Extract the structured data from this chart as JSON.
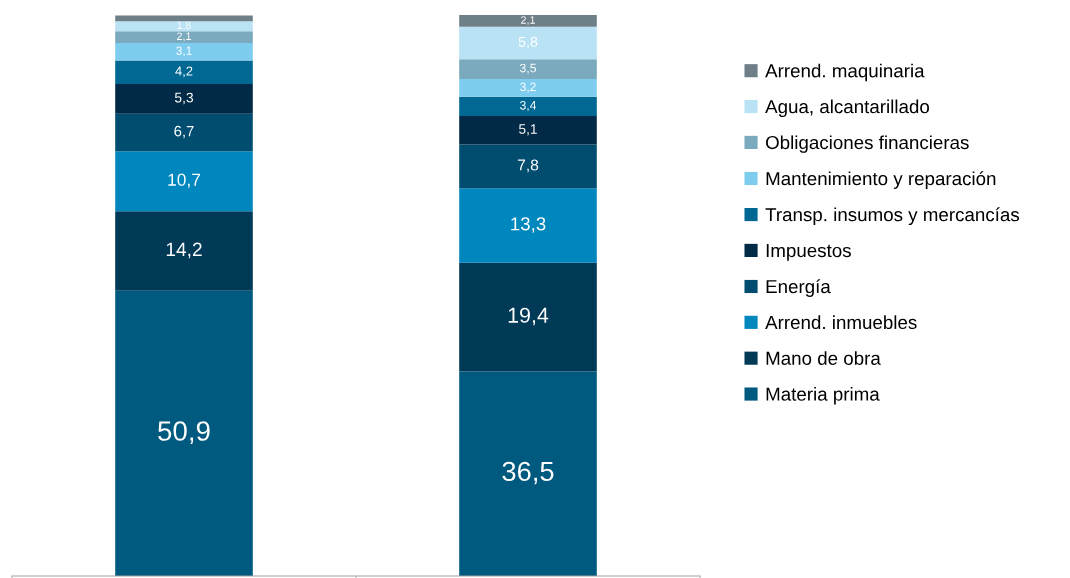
{
  "chart_data": {
    "type": "bar",
    "stacked": true,
    "legend": "right",
    "categories": [
      null,
      null
    ],
    "series": [
      {
        "name": "Materia prima",
        "color": "#00597f",
        "values": [
          50.9,
          36.5
        ],
        "value_labels": [
          "50,9",
          "36,5"
        ]
      },
      {
        "name": "Mano de obra",
        "color": "#003a57",
        "values": [
          14.2,
          19.4
        ],
        "value_labels": [
          "14,2",
          "19,4"
        ]
      },
      {
        "name": "Arrend. inmuebles",
        "color": "#0087bd",
        "values": [
          10.7,
          13.3
        ],
        "value_labels": [
          "10,7",
          "13,3"
        ]
      },
      {
        "name": "Energía",
        "color": "#004d70",
        "values": [
          6.7,
          7.8
        ],
        "value_labels": [
          "6,7",
          "7,8"
        ]
      },
      {
        "name": "Impuestos",
        "color": "#002a45",
        "values": [
          5.3,
          5.1
        ],
        "value_labels": [
          "5,3",
          "5,1"
        ]
      },
      {
        "name": "Transp. insumos y mercancías",
        "color": "#006892",
        "values": [
          4.2,
          3.4
        ],
        "value_labels": [
          "4,2",
          "3,4"
        ]
      },
      {
        "name": "Mantenimiento y reparación",
        "color": "#7ecdee",
        "values": [
          3.1,
          3.2
        ],
        "value_labels": [
          "3,1",
          "3,2"
        ]
      },
      {
        "name": "Obligaciones financieras",
        "color": "#7ba9bd",
        "values": [
          2.1,
          3.5
        ],
        "value_labels": [
          "2,1",
          "3,5"
        ]
      },
      {
        "name": "Agua, alcantarillado",
        "color": "#b9e2f4",
        "values": [
          1.8,
          5.8
        ],
        "value_labels": [
          "1,8",
          "5,8"
        ]
      },
      {
        "name": "Arrend. maquinaria",
        "color": "#6e7f88",
        "values": [
          1.0,
          2.1
        ],
        "value_labels": [
          null,
          "2,1"
        ]
      }
    ]
  }
}
